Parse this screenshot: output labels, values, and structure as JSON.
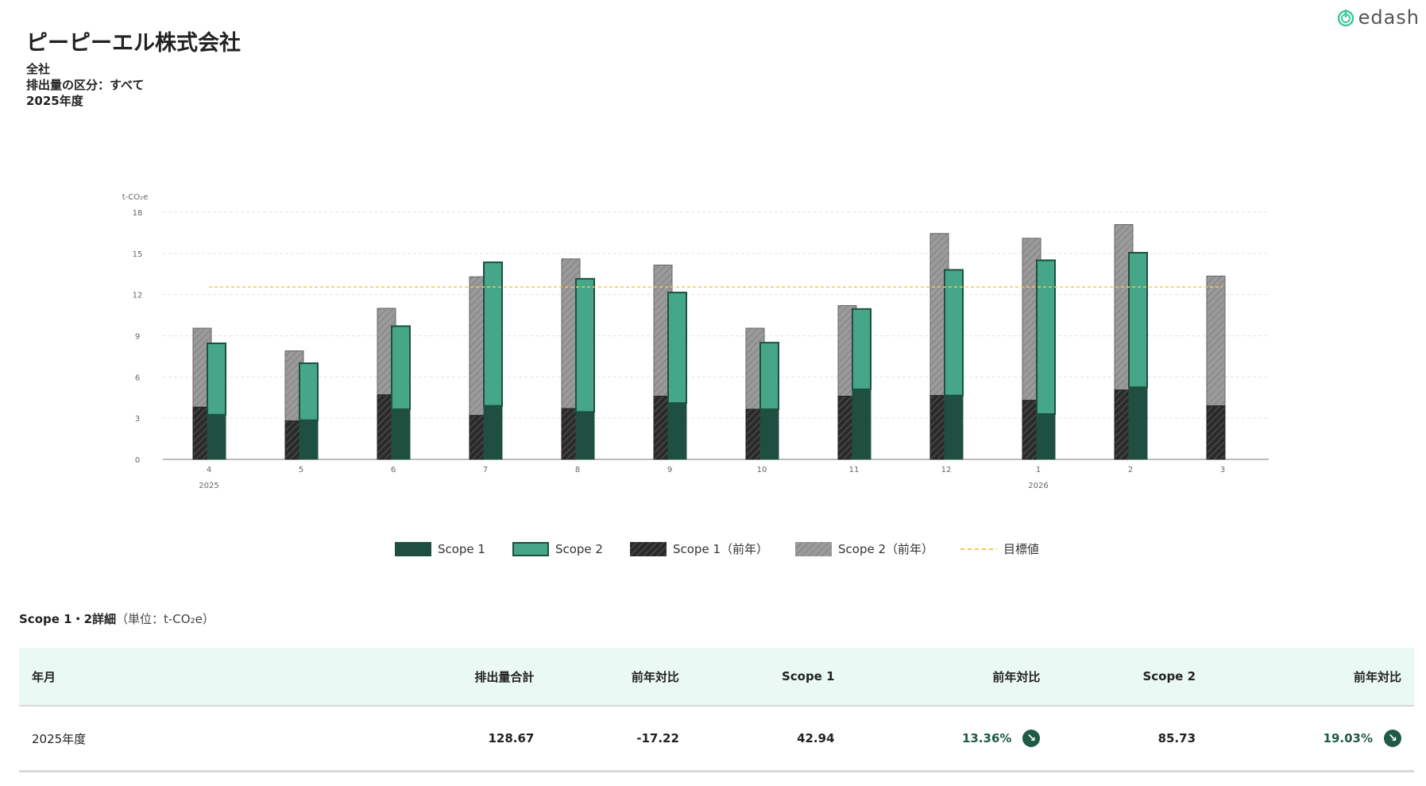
{
  "header": {
    "company": "ピーピーエル株式会社",
    "scope": "全社",
    "category": "排出量の区分：すべて",
    "year": "2025年度",
    "logo": "edash"
  },
  "chart_data": {
    "type": "bar",
    "ylabel": "t-CO₂e",
    "ylim": [
      0,
      18
    ],
    "yticks": [
      0,
      3,
      6,
      9,
      12,
      15,
      18
    ],
    "categories": [
      "4",
      "5",
      "6",
      "7",
      "8",
      "9",
      "10",
      "11",
      "12",
      "1",
      "2",
      "3"
    ],
    "year_labels": {
      "0": "2025",
      "9": "2026"
    },
    "series": [
      {
        "name": "Scope 1",
        "values": [
          3.25,
          2.85,
          3.65,
          3.9,
          3.45,
          4.1,
          3.65,
          5.1,
          4.65,
          3.3,
          5.25,
          null
        ]
      },
      {
        "name": "Scope 2",
        "values": [
          5.2,
          4.15,
          6.05,
          10.45,
          9.7,
          8.05,
          4.85,
          5.85,
          9.15,
          11.2,
          9.8,
          null
        ]
      },
      {
        "name": "Scope 1（前年）",
        "values": [
          3.8,
          2.8,
          4.7,
          3.2,
          3.7,
          4.6,
          3.65,
          4.6,
          4.65,
          4.3,
          5.05,
          3.9
        ]
      },
      {
        "name": "Scope 2（前年）",
        "values": [
          5.75,
          5.1,
          6.3,
          10.1,
          10.9,
          9.55,
          5.9,
          6.6,
          11.8,
          11.8,
          12.05,
          9.45
        ]
      }
    ],
    "target": {
      "name": "目標値",
      "value": 12.55
    },
    "grid": true,
    "legend": "bottom-center",
    "colors": {
      "scope1": "#1f4f40",
      "scope2": "#45a688",
      "prev1": "#2a2a2a",
      "prev2": "#8c8c8c",
      "target": "#f2c94c"
    }
  },
  "table": {
    "title": "Scope 1・2詳細",
    "unit": "（単位：t-CO₂e）",
    "headers": [
      "年月",
      "排出量合計",
      "前年対比",
      "Scope 1",
      "前年対比",
      "Scope 2",
      "前年対比"
    ],
    "rows": [
      {
        "period": "2025年度",
        "total": "128.67",
        "total_yoy": "-17.22",
        "scope1": "42.94",
        "scope1_yoy": "13.36%",
        "scope2": "85.73",
        "scope2_yoy": "19.03%"
      }
    ]
  }
}
